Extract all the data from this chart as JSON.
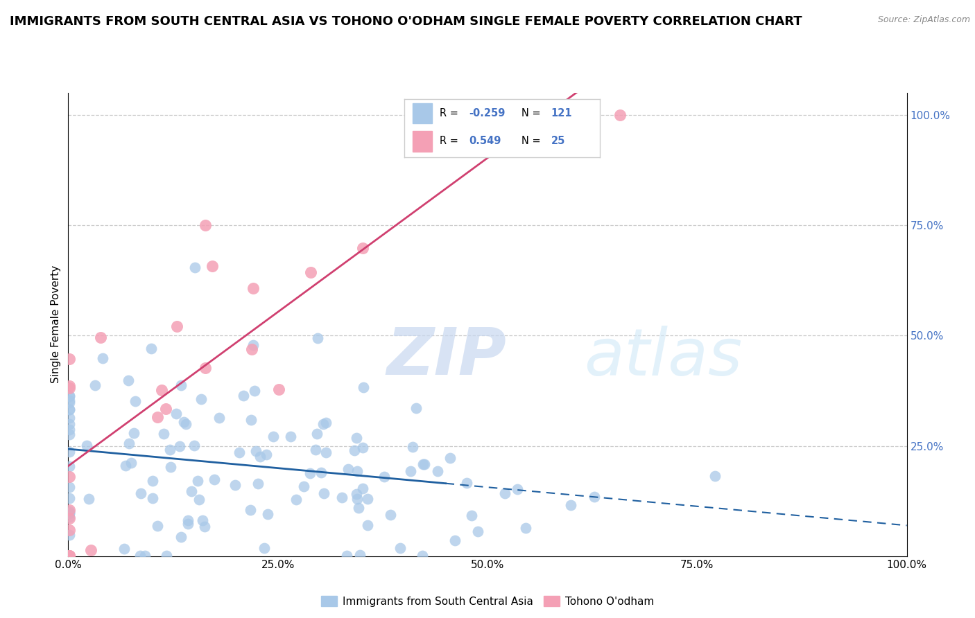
{
  "title": "IMMIGRANTS FROM SOUTH CENTRAL ASIA VS TOHONO O'ODHAM SINGLE FEMALE POVERTY CORRELATION CHART",
  "source_text": "Source: ZipAtlas.com",
  "ylabel": "Single Female Poverty",
  "watermark_zip": "ZIP",
  "watermark_atlas": "atlas",
  "blue_R": -0.259,
  "blue_N": 121,
  "pink_R": 0.549,
  "pink_N": 25,
  "blue_color": "#a8c8e8",
  "pink_color": "#f4a0b5",
  "blue_trend_color": "#2060a0",
  "pink_trend_color": "#d04070",
  "legend_label_blue": "Immigrants from South Central Asia",
  "legend_label_pink": "Tohono O'odham",
  "background_color": "#ffffff",
  "grid_color": "#cccccc",
  "title_fontsize": 13,
  "axis_label_fontsize": 11,
  "tick_fontsize": 11,
  "tick_color": "#4472c4",
  "seed": 42
}
